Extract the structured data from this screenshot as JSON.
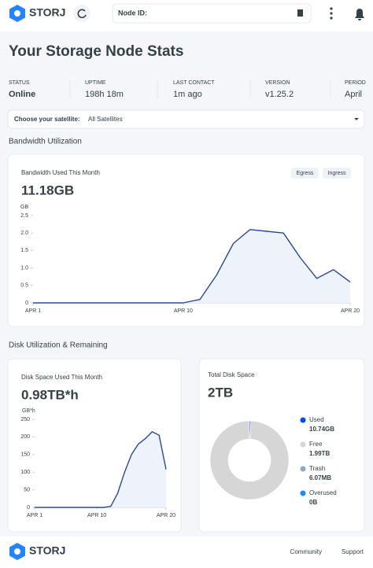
{
  "header": {
    "logo": "STORJ",
    "node_id_label": "Node ID:"
  },
  "title": "Your Storage Node Stats",
  "stats": [
    {
      "label": "STATUS",
      "value": "Online"
    },
    {
      "label": "UPTIME",
      "value": "198h 18m"
    },
    {
      "label": "LAST CONTACT",
      "value": "1m ago"
    },
    {
      "label": "VERSION",
      "value": "v1.25.2"
    },
    {
      "label": "PERIOD",
      "value": "April"
    }
  ],
  "satellite": {
    "label": "Choose your satellite:",
    "value": "All Satellites"
  },
  "bandwidth": {
    "section_title": "Bandwidth Utilization",
    "card_title": "Bandwidth Used This Month",
    "total": "11.18GB",
    "tabs": [
      "Egress",
      "Ingress"
    ],
    "chart_data": {
      "type": "line",
      "y_label": "GB",
      "color": "#2c4a94",
      "x": [
        1,
        2,
        3,
        4,
        5,
        6,
        7,
        8,
        9,
        10,
        11,
        12,
        13,
        14,
        15,
        16,
        17,
        18,
        19,
        20
      ],
      "values": [
        0,
        0,
        0,
        0,
        0,
        0,
        0,
        0,
        0,
        0,
        0.1,
        0.8,
        1.7,
        2.1,
        2.05,
        2.0,
        1.3,
        0.7,
        0.95,
        0.6
      ],
      "xlim": [
        1,
        20
      ],
      "xticks": [
        {
          "value": 1,
          "label": "APR 1"
        },
        {
          "value": 10,
          "label": "APR 10"
        },
        {
          "value": 20,
          "label": "APR 20"
        }
      ],
      "ylim": [
        0,
        2.5
      ],
      "yticks": [
        0,
        0.5,
        {
          "value": 1,
          "label": "1.0"
        },
        1.5,
        {
          "value": 2,
          "label": "2.0"
        },
        2.5
      ]
    }
  },
  "disk": {
    "section_title": "Disk Utilization & Remaining",
    "card_title": "Disk Space Used This Month",
    "total": "0.98TB*h",
    "chart_data": {
      "type": "line",
      "y_label": "GB*h",
      "color": "#2c4a94",
      "x": [
        1,
        2,
        3,
        4,
        5,
        6,
        7,
        8,
        9,
        10,
        11,
        12,
        13,
        14,
        15,
        16,
        17,
        18,
        19,
        20
      ],
      "values": [
        0,
        0,
        0,
        0,
        0,
        0,
        0,
        0,
        0,
        0,
        0,
        3,
        40,
        100,
        150,
        180,
        195,
        215,
        205,
        108
      ],
      "xlim": [
        1,
        20
      ],
      "xticks": [
        {
          "value": 1,
          "label": "APR 1"
        },
        {
          "value": 10,
          "label": "APR 10"
        },
        {
          "value": 20,
          "label": "APR 20"
        }
      ],
      "ylim": [
        0,
        250
      ],
      "yticks": [
        0,
        50,
        100,
        150,
        200,
        250
      ]
    }
  },
  "total_disk": {
    "card_title": "Total Disk Space",
    "total": "2TB",
    "chart_data": {
      "type": "donut",
      "categories": [
        "Used",
        "Free",
        "Trash",
        "Overused"
      ],
      "values": [
        10.74,
        1990,
        0.00607,
        0
      ],
      "value_labels": [
        "10.74GB",
        "1.99TB",
        "6.07MB",
        "0B"
      ],
      "colors": [
        "#0149ff",
        "#d6d6d6",
        "#8fa7c6",
        "#1a8cf5"
      ]
    }
  },
  "footer": {
    "logo": "STORJ",
    "links": [
      "Community",
      "Support"
    ]
  }
}
